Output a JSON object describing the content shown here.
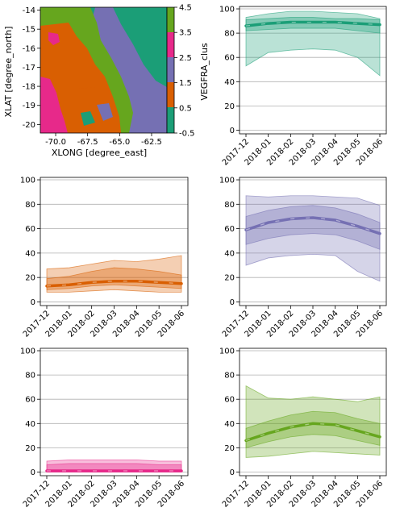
{
  "colors": {
    "teal": "#1b9e77",
    "orange": "#d95f02",
    "purple": "#7570b3",
    "pink": "#e7298a",
    "green": "#66a61e",
    "grid": "#b0b0b0"
  },
  "map": {
    "xlabel": "XLONG [degree_east]",
    "ylabel": "XLAT [degree_north]",
    "xticks": [
      "-70.0",
      "-67.5",
      "-65.0",
      "-62.5"
    ],
    "xtick_values": [
      -70.0,
      -67.5,
      -65.0,
      -62.5
    ],
    "yticks": [
      "-14",
      "-15",
      "-16",
      "-17",
      "-18",
      "-19",
      "-20"
    ],
    "ytick_values": [
      -14,
      -15,
      -16,
      -17,
      -18,
      -19,
      -20
    ],
    "colorbar": {
      "label": "VEGFRA_clus",
      "ticks": [
        "4.5",
        "3.5",
        "2.5",
        "1.5",
        "0.5",
        "-0.5"
      ]
    }
  },
  "chart_data": [
    {
      "type": "area",
      "panel": "cluster-0",
      "color": "#1b9e77",
      "x": [
        "2017-12",
        "2018-01",
        "2018-02",
        "2018-03",
        "2018-04",
        "2018-05",
        "2018-06"
      ],
      "yticks": [
        "0",
        "20",
        "40",
        "60",
        "80",
        "100"
      ],
      "ylim": [
        -3,
        102
      ],
      "grid": "y",
      "median": [
        86,
        88,
        89,
        89,
        89,
        88,
        87
      ],
      "inner_band": [
        [
          82,
          91
        ],
        [
          83,
          92
        ],
        [
          84,
          93
        ],
        [
          84,
          93
        ],
        [
          84,
          92
        ],
        [
          82,
          92
        ],
        [
          80,
          91
        ]
      ],
      "outer_band": [
        [
          53,
          93
        ],
        [
          64,
          96
        ],
        [
          66,
          98
        ],
        [
          67,
          98
        ],
        [
          66,
          97
        ],
        [
          60,
          96
        ],
        [
          45,
          92
        ]
      ]
    },
    {
      "type": "area",
      "panel": "cluster-1",
      "color": "#d95f02",
      "x": [
        "2017-12",
        "2018-01",
        "2018-02",
        "2018-03",
        "2018-04",
        "2018-05",
        "2018-06"
      ],
      "yticks": [
        "0",
        "20",
        "40",
        "60",
        "80",
        "100"
      ],
      "ylim": [
        -3,
        102
      ],
      "grid": "y",
      "median": [
        13,
        14,
        16,
        17,
        17,
        16,
        15
      ],
      "inner_band": [
        [
          10,
          19
        ],
        [
          11,
          21
        ],
        [
          13,
          25
        ],
        [
          14,
          28
        ],
        [
          13,
          27
        ],
        [
          12,
          25
        ],
        [
          11,
          22
        ]
      ],
      "outer_band": [
        [
          8,
          27
        ],
        [
          8,
          28
        ],
        [
          9,
          31
        ],
        [
          10,
          34
        ],
        [
          9,
          33
        ],
        [
          8,
          35
        ],
        [
          8,
          38
        ]
      ]
    },
    {
      "type": "area",
      "panel": "cluster-2",
      "color": "#7570b3",
      "x": [
        "2017-12",
        "2018-01",
        "2018-02",
        "2018-03",
        "2018-04",
        "2018-05",
        "2018-06"
      ],
      "yticks": [
        "0",
        "20",
        "40",
        "60",
        "80",
        "100"
      ],
      "ylim": [
        -3,
        102
      ],
      "grid": "y",
      "median": [
        59,
        65,
        68,
        69,
        67,
        62,
        56
      ],
      "inner_band": [
        [
          47,
          70
        ],
        [
          52,
          75
        ],
        [
          55,
          78
        ],
        [
          56,
          79
        ],
        [
          55,
          77
        ],
        [
          50,
          72
        ],
        [
          43,
          65
        ]
      ],
      "outer_band": [
        [
          30,
          87
        ],
        [
          36,
          86
        ],
        [
          38,
          87
        ],
        [
          39,
          87
        ],
        [
          38,
          86
        ],
        [
          25,
          85
        ],
        [
          17,
          79
        ]
      ]
    },
    {
      "type": "area",
      "panel": "cluster-3",
      "color": "#e7298a",
      "x": [
        "2017-12",
        "2018-01",
        "2018-02",
        "2018-03",
        "2018-04",
        "2018-05",
        "2018-06"
      ],
      "yticks": [
        "0",
        "20",
        "40",
        "60",
        "80",
        "100"
      ],
      "ylim": [
        -3,
        102
      ],
      "grid": "y",
      "median": [
        1,
        1,
        1,
        1,
        1,
        1,
        1
      ],
      "inner_band": [
        [
          0,
          6
        ],
        [
          0,
          7
        ],
        [
          0,
          7
        ],
        [
          0,
          7
        ],
        [
          0,
          7
        ],
        [
          0,
          6
        ],
        [
          0,
          6
        ]
      ],
      "outer_band": [
        [
          0,
          9
        ],
        [
          0,
          10
        ],
        [
          0,
          10
        ],
        [
          0,
          10
        ],
        [
          0,
          10
        ],
        [
          0,
          9
        ],
        [
          0,
          9
        ]
      ]
    },
    {
      "type": "area",
      "panel": "cluster-4",
      "color": "#66a61e",
      "x": [
        "2017-12",
        "2018-01",
        "2018-02",
        "2018-03",
        "2018-04",
        "2018-05",
        "2018-06"
      ],
      "yticks": [
        "0",
        "20",
        "40",
        "60",
        "80",
        "100"
      ],
      "ylim": [
        -3,
        102
      ],
      "grid": "y",
      "median": [
        26,
        32,
        37,
        40,
        39,
        34,
        29
      ],
      "inner_band": [
        [
          20,
          36
        ],
        [
          25,
          42
        ],
        [
          29,
          47
        ],
        [
          31,
          50
        ],
        [
          30,
          49
        ],
        [
          26,
          44
        ],
        [
          22,
          40
        ]
      ],
      "outer_band": [
        [
          12,
          71
        ],
        [
          13,
          61
        ],
        [
          15,
          60
        ],
        [
          17,
          62
        ],
        [
          16,
          60
        ],
        [
          15,
          58
        ],
        [
          14,
          62
        ]
      ]
    }
  ]
}
